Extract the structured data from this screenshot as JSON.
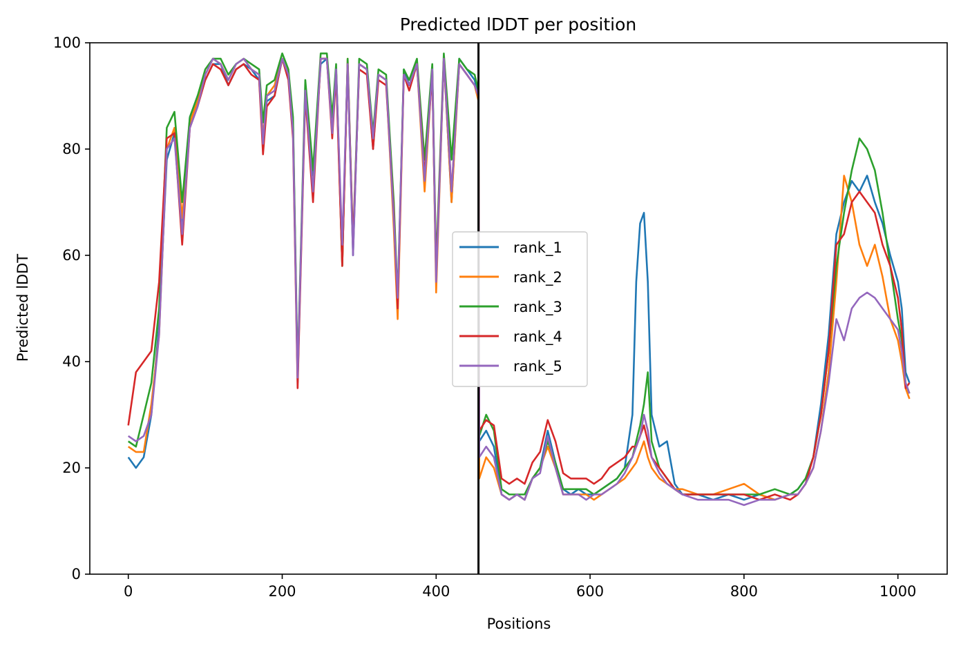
{
  "chart_data": {
    "type": "line",
    "title": "Predicted lDDT per position",
    "xlabel": "Positions",
    "ylabel": "Predicted lDDT",
    "xlim": [
      -50,
      1064
    ],
    "ylim": [
      0,
      100
    ],
    "xticks": [
      0,
      200,
      400,
      600,
      800,
      1000
    ],
    "yticks": [
      0,
      20,
      40,
      60,
      80,
      100
    ],
    "grid": false,
    "legend_position": "center",
    "vline": {
      "x": 455,
      "color": "#000000"
    },
    "x": [
      0,
      10,
      20,
      30,
      40,
      50,
      60,
      70,
      80,
      90,
      100,
      110,
      120,
      130,
      140,
      150,
      160,
      170,
      175,
      180,
      190,
      200,
      208,
      214,
      220,
      230,
      240,
      250,
      258,
      265,
      270,
      278,
      285,
      292,
      300,
      310,
      318,
      325,
      335,
      345,
      350,
      358,
      365,
      375,
      385,
      395,
      400,
      410,
      420,
      430,
      440,
      450,
      455,
      456,
      465,
      475,
      485,
      495,
      505,
      515,
      525,
      535,
      545,
      555,
      565,
      575,
      585,
      595,
      605,
      615,
      625,
      635,
      645,
      655,
      660,
      665,
      670,
      675,
      680,
      690,
      700,
      710,
      720,
      740,
      760,
      780,
      800,
      820,
      840,
      860,
      870,
      880,
      890,
      900,
      910,
      920,
      930,
      940,
      950,
      960,
      970,
      980,
      990,
      1000,
      1005,
      1010,
      1015
    ],
    "series": [
      {
        "name": "rank_1",
        "color": "#1f77b4",
        "values": [
          22,
          20,
          22,
          30,
          47,
          78,
          83,
          66,
          86,
          90,
          93,
          96,
          96,
          92,
          95,
          96,
          95,
          93,
          82,
          89,
          90,
          97,
          94,
          85,
          36,
          92,
          75,
          96,
          97,
          85,
          95,
          60,
          96,
          60,
          96,
          95,
          80,
          94,
          93,
          68,
          50,
          95,
          92,
          96,
          75,
          95,
          55,
          97,
          70,
          97,
          95,
          93,
          90,
          25,
          27,
          24,
          15,
          14,
          15,
          14,
          18,
          20,
          27,
          21,
          16,
          15,
          16,
          15,
          15,
          16,
          17,
          18,
          20,
          30,
          55,
          66,
          68,
          55,
          30,
          24,
          25,
          17,
          15,
          15,
          14,
          15,
          14,
          15,
          14,
          15,
          16,
          18,
          22,
          32,
          45,
          64,
          70,
          74,
          72,
          75,
          70,
          66,
          60,
          55,
          50,
          38,
          36
        ]
      },
      {
        "name": "rank_2",
        "color": "#ff7f0e",
        "values": [
          24,
          23,
          23,
          32,
          45,
          80,
          84,
          67,
          85,
          89,
          94,
          97,
          96,
          93,
          96,
          97,
          95,
          94,
          82,
          90,
          92,
          97,
          94,
          84,
          37,
          91,
          72,
          97,
          97,
          84,
          95,
          58,
          97,
          61,
          96,
          95,
          82,
          94,
          93,
          65,
          48,
          94,
          92,
          96,
          72,
          95,
          53,
          97,
          70,
          96,
          94,
          92,
          89,
          18,
          22,
          20,
          15,
          14,
          15,
          14,
          18,
          20,
          24,
          20,
          15,
          15,
          15,
          15,
          14,
          15,
          16,
          17,
          18,
          20,
          21,
          23,
          25,
          22,
          20,
          18,
          17,
          16,
          16,
          15,
          15,
          16,
          17,
          15,
          14,
          15,
          15,
          17,
          20,
          27,
          38,
          55,
          75,
          70,
          62,
          58,
          62,
          56,
          48,
          44,
          40,
          35,
          33
        ]
      },
      {
        "name": "rank_3",
        "color": "#2ca02c",
        "values": [
          25,
          24,
          30,
          36,
          50,
          84,
          87,
          70,
          86,
          90,
          95,
          97,
          97,
          94,
          96,
          97,
          96,
          95,
          85,
          92,
          93,
          98,
          95,
          86,
          38,
          93,
          76,
          98,
          98,
          86,
          96,
          58,
          97,
          62,
          97,
          96,
          83,
          95,
          94,
          70,
          52,
          95,
          93,
          97,
          78,
          96,
          58,
          98,
          78,
          97,
          95,
          94,
          91,
          26,
          30,
          27,
          16,
          15,
          15,
          15,
          18,
          20,
          25,
          21,
          16,
          16,
          16,
          16,
          15,
          16,
          17,
          18,
          20,
          22,
          25,
          28,
          32,
          38,
          25,
          20,
          18,
          16,
          15,
          15,
          15,
          15,
          15,
          15,
          16,
          15,
          16,
          18,
          22,
          30,
          42,
          58,
          68,
          76,
          82,
          80,
          76,
          68,
          58,
          48,
          44,
          36,
          34
        ]
      },
      {
        "name": "rank_4",
        "color": "#d62728",
        "values": [
          28,
          38,
          40,
          42,
          55,
          82,
          83,
          62,
          84,
          88,
          93,
          96,
          95,
          92,
          95,
          96,
          94,
          93,
          79,
          88,
          90,
          97,
          93,
          82,
          35,
          90,
          70,
          97,
          97,
          82,
          94,
          58,
          96,
          62,
          95,
          94,
          80,
          93,
          92,
          68,
          50,
          94,
          91,
          96,
          75,
          94,
          56,
          97,
          72,
          96,
          94,
          92,
          90,
          27,
          29,
          28,
          18,
          17,
          18,
          17,
          21,
          23,
          29,
          25,
          19,
          18,
          18,
          18,
          17,
          18,
          20,
          21,
          22,
          24,
          24,
          26,
          28,
          25,
          22,
          20,
          18,
          16,
          15,
          15,
          15,
          15,
          15,
          14,
          15,
          14,
          15,
          17,
          22,
          30,
          42,
          62,
          64,
          70,
          72,
          70,
          68,
          62,
          58,
          52,
          46,
          35,
          36
        ]
      },
      {
        "name": "rank_5",
        "color": "#9467bd",
        "values": [
          26,
          25,
          26,
          30,
          45,
          80,
          82,
          64,
          84,
          88,
          94,
          97,
          96,
          93,
          96,
          97,
          95,
          94,
          81,
          90,
          91,
          97,
          94,
          83,
          37,
          91,
          72,
          97,
          97,
          83,
          95,
          62,
          96,
          60,
          96,
          95,
          82,
          94,
          93,
          67,
          52,
          94,
          92,
          96,
          74,
          95,
          55,
          97,
          72,
          96,
          94,
          92,
          90,
          22,
          24,
          22,
          15,
          14,
          15,
          14,
          18,
          19,
          26,
          20,
          15,
          15,
          15,
          14,
          15,
          15,
          16,
          17,
          19,
          22,
          24,
          26,
          30,
          27,
          22,
          19,
          17,
          16,
          15,
          14,
          14,
          14,
          13,
          14,
          14,
          15,
          15,
          17,
          20,
          27,
          36,
          48,
          44,
          50,
          52,
          53,
          52,
          50,
          48,
          46,
          42,
          36,
          34
        ]
      }
    ]
  }
}
